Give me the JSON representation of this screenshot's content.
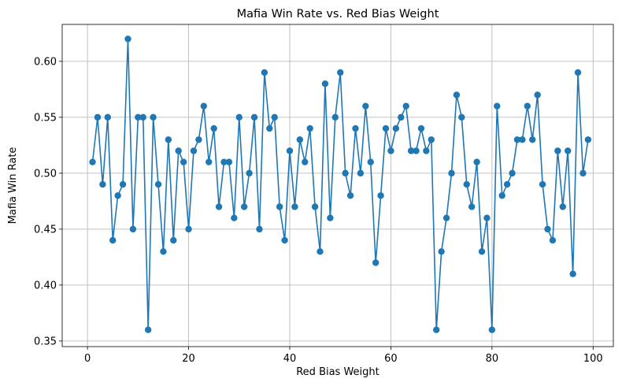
{
  "chart_data": {
    "type": "line",
    "title": "Mafia Win Rate vs. Red Bias Weight",
    "xlabel": "Red Bias Weight",
    "ylabel": "Mafia Win Rate",
    "xlim": [
      -5,
      104
    ],
    "ylim": [
      0.345,
      0.633
    ],
    "xticks": [
      0,
      20,
      40,
      60,
      80,
      100
    ],
    "yticks": [
      0.35,
      0.4,
      0.45,
      0.5,
      0.55,
      0.6
    ],
    "xtick_labels": [
      "0",
      "20",
      "40",
      "60",
      "80",
      "100"
    ],
    "ytick_labels": [
      "0.35",
      "0.40",
      "0.45",
      "0.50",
      "0.55",
      "0.60"
    ],
    "grid": true,
    "line_color": "#1f77b4",
    "marker": "circle",
    "series": [
      {
        "x": [
          1,
          2,
          3,
          4,
          5,
          6,
          7,
          8,
          9,
          10,
          11,
          12,
          13,
          14,
          15,
          16,
          17,
          18,
          19,
          20,
          21,
          22,
          23,
          24,
          25,
          26,
          27,
          28,
          29,
          30,
          31,
          32,
          33,
          34,
          35,
          36,
          37,
          38,
          39,
          40,
          41,
          42,
          43,
          44,
          45,
          46,
          47,
          48,
          49,
          50,
          51,
          52,
          53,
          54,
          55,
          56,
          57,
          58,
          59,
          60,
          61,
          62,
          63,
          64,
          65,
          66,
          67,
          68,
          69,
          70,
          71,
          72,
          73,
          74,
          75,
          76,
          77,
          78,
          79,
          80,
          81,
          82,
          83,
          84,
          85,
          86,
          87,
          88,
          89,
          90,
          91,
          92,
          93,
          94,
          95,
          96,
          97,
          98,
          99
        ],
        "values": [
          0.51,
          0.55,
          0.49,
          0.55,
          0.44,
          0.48,
          0.49,
          0.62,
          0.45,
          0.55,
          0.55,
          0.36,
          0.55,
          0.49,
          0.43,
          0.53,
          0.44,
          0.52,
          0.51,
          0.45,
          0.52,
          0.53,
          0.56,
          0.51,
          0.54,
          0.47,
          0.51,
          0.51,
          0.46,
          0.55,
          0.47,
          0.5,
          0.55,
          0.45,
          0.59,
          0.54,
          0.55,
          0.47,
          0.44,
          0.52,
          0.47,
          0.53,
          0.51,
          0.54,
          0.47,
          0.43,
          0.58,
          0.46,
          0.55,
          0.59,
          0.5,
          0.48,
          0.54,
          0.5,
          0.56,
          0.51,
          0.42,
          0.48,
          0.54,
          0.52,
          0.54,
          0.55,
          0.56,
          0.52,
          0.52,
          0.54,
          0.52,
          0.53,
          0.36,
          0.43,
          0.46,
          0.5,
          0.57,
          0.55,
          0.49,
          0.47,
          0.51,
          0.43,
          0.46,
          0.36,
          0.56,
          0.48,
          0.49,
          0.5,
          0.53,
          0.53,
          0.56,
          0.53,
          0.57,
          0.49,
          0.45,
          0.44,
          0.52,
          0.47,
          0.52,
          0.41,
          0.59,
          0.5,
          0.53
        ]
      }
    ]
  }
}
